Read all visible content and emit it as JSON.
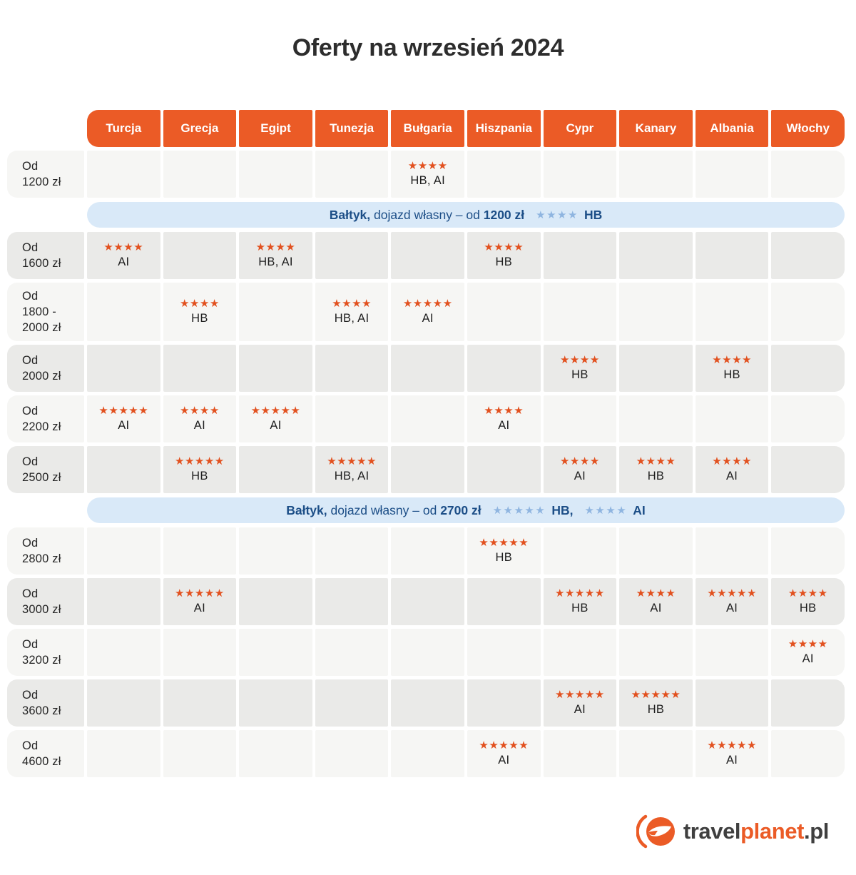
{
  "chart_data": {
    "type": "table",
    "title": "Oferty na wrzesień 2024",
    "columns": [
      "Turcja",
      "Grecja",
      "Egipt",
      "Tunezja",
      "Bułgaria",
      "Hiszpania",
      "Cypr",
      "Kanary",
      "Albania",
      "Włochy"
    ],
    "rows": [
      {
        "kind": "price",
        "shade": "light",
        "label_lines": [
          "Od",
          "1200 zł"
        ],
        "cells": [
          null,
          null,
          null,
          null,
          {
            "stars": 4,
            "board": "HB, AI"
          },
          null,
          null,
          null,
          null,
          null
        ]
      },
      {
        "kind": "banner",
        "lead_bold": "Bałtyk,",
        "lead": "dojazd własny – od",
        "price_bold": "1200 zł",
        "offers": [
          {
            "stars": 4,
            "board": "HB"
          }
        ]
      },
      {
        "kind": "price",
        "shade": "dark",
        "label_lines": [
          "Od",
          "1600 zł"
        ],
        "cells": [
          {
            "stars": 4,
            "board": "AI"
          },
          null,
          {
            "stars": 4,
            "board": "HB, AI"
          },
          null,
          null,
          {
            "stars": 4,
            "board": "HB"
          },
          null,
          null,
          null,
          null
        ]
      },
      {
        "kind": "price",
        "shade": "light",
        "label_lines": [
          "Od",
          "1800 -",
          "2000 zł"
        ],
        "cells": [
          null,
          {
            "stars": 4,
            "board": "HB"
          },
          null,
          {
            "stars": 4,
            "board": "HB, AI"
          },
          {
            "stars": 5,
            "board": "AI"
          },
          null,
          null,
          null,
          null,
          null
        ]
      },
      {
        "kind": "price",
        "shade": "dark",
        "label_lines": [
          "Od",
          "2000 zł"
        ],
        "cells": [
          null,
          null,
          null,
          null,
          null,
          null,
          {
            "stars": 4,
            "board": "HB"
          },
          null,
          {
            "stars": 4,
            "board": "HB"
          },
          null
        ]
      },
      {
        "kind": "price",
        "shade": "light",
        "label_lines": [
          "Od",
          "2200 zł"
        ],
        "cells": [
          {
            "stars": 5,
            "board": "AI"
          },
          {
            "stars": 4,
            "board": "AI"
          },
          {
            "stars": 5,
            "board": "AI"
          },
          null,
          null,
          {
            "stars": 4,
            "board": "AI"
          },
          null,
          null,
          null,
          null
        ]
      },
      {
        "kind": "price",
        "shade": "dark",
        "label_lines": [
          "Od",
          "2500 zł"
        ],
        "cells": [
          null,
          {
            "stars": 5,
            "board": "HB"
          },
          null,
          {
            "stars": 5,
            "board": "HB, AI"
          },
          null,
          null,
          {
            "stars": 4,
            "board": "AI"
          },
          {
            "stars": 4,
            "board": "HB"
          },
          {
            "stars": 4,
            "board": "AI"
          },
          null
        ]
      },
      {
        "kind": "banner",
        "lead_bold": "Bałtyk,",
        "lead": "dojazd własny – od",
        "price_bold": "2700 zł",
        "offers": [
          {
            "stars": 5,
            "board": "HB,"
          },
          {
            "stars": 4,
            "board": "AI"
          }
        ]
      },
      {
        "kind": "price",
        "shade": "light",
        "label_lines": [
          "Od",
          "2800 zł"
        ],
        "cells": [
          null,
          null,
          null,
          null,
          null,
          {
            "stars": 5,
            "board": "HB"
          },
          null,
          null,
          null,
          null
        ]
      },
      {
        "kind": "price",
        "shade": "dark",
        "label_lines": [
          "Od",
          "3000 zł"
        ],
        "cells": [
          null,
          {
            "stars": 5,
            "board": "AI"
          },
          null,
          null,
          null,
          null,
          {
            "stars": 5,
            "board": "HB"
          },
          {
            "stars": 4,
            "board": "AI"
          },
          {
            "stars": 5,
            "board": "AI"
          },
          {
            "stars": 4,
            "board": "HB"
          }
        ]
      },
      {
        "kind": "price",
        "shade": "light",
        "label_lines": [
          "Od",
          "3200 zł"
        ],
        "cells": [
          null,
          null,
          null,
          null,
          null,
          null,
          null,
          null,
          null,
          {
            "stars": 4,
            "board": "AI"
          }
        ]
      },
      {
        "kind": "price",
        "shade": "dark",
        "label_lines": [
          "Od",
          "3600 zł"
        ],
        "cells": [
          null,
          null,
          null,
          null,
          null,
          null,
          {
            "stars": 5,
            "board": "AI"
          },
          {
            "stars": 5,
            "board": "HB"
          },
          null,
          null
        ]
      },
      {
        "kind": "price",
        "shade": "light",
        "label_lines": [
          "Od",
          "4600 zł"
        ],
        "cells": [
          null,
          null,
          null,
          null,
          null,
          {
            "stars": 5,
            "board": "AI"
          },
          null,
          null,
          {
            "stars": 5,
            "board": "AI"
          },
          null
        ]
      }
    ]
  },
  "logo": {
    "icon": "travelplanet-globe-icon",
    "text_travel": "travel",
    "text_planet": "planet",
    "text_tld": ".pl"
  },
  "colors": {
    "header_orange": "#EB5B26",
    "star_orange": "#E2511F",
    "banner_bg": "#D9E9F8",
    "banner_text": "#1C4E87",
    "banner_star": "#8FB5E0",
    "row_light": "#F6F6F4",
    "row_dark": "#EAEAE8"
  }
}
